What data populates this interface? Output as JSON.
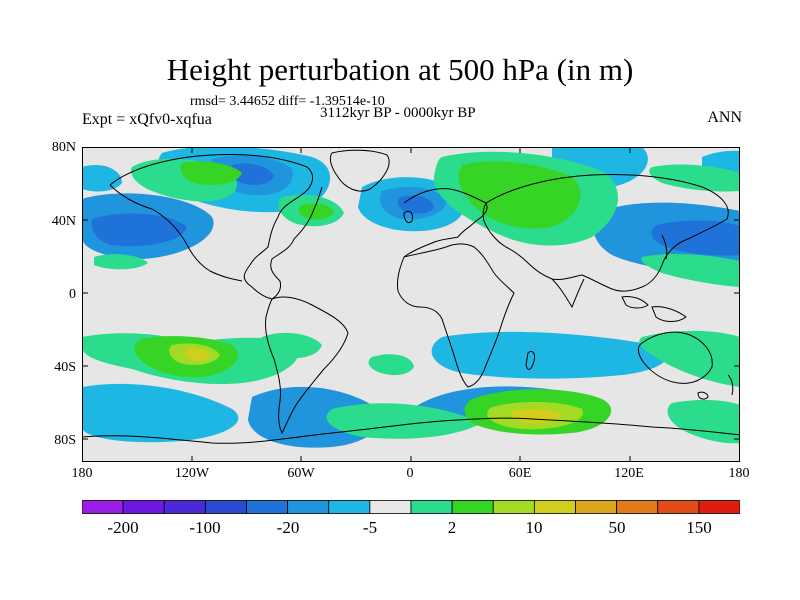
{
  "title": "Height perturbation at 500 hPa (in m)",
  "stats": "rmsd= 3.44652 diff= -1.39514e-10",
  "period": "3112kyr BP - 0000kyr BP",
  "experiment": "Expt = xQfv0-xqfua",
  "season": "ANN",
  "map": {
    "lat_ticks": [
      "80N",
      "40N",
      "0",
      "40S",
      "80S"
    ],
    "lon_ticks": [
      "180",
      "120W",
      "60W",
      "0",
      "60E",
      "120E",
      "180"
    ],
    "background_color": "#e6e6e6"
  },
  "colorbar": {
    "colors": [
      "#9a1de8",
      "#6e18e2",
      "#4a2ad8",
      "#2a4ad2",
      "#1e72d8",
      "#2094dc",
      "#1eb6e2",
      "#e8e8e8",
      "#2adc8c",
      "#36d424",
      "#a2da24",
      "#d2ce1e",
      "#dca61c",
      "#e07a1a",
      "#e24c16",
      "#e01c10"
    ],
    "labels": [
      "-200",
      "-100",
      "-20",
      "-5",
      "2",
      "10",
      "50",
      "150"
    ]
  },
  "chart_data": {
    "type": "heatmap",
    "title": "Height perturbation at 500 hPa (in m)",
    "variable": "500 hPa geopotential height difference",
    "units": "m",
    "color_levels": [
      "-200",
      "-100",
      "-20",
      "-5",
      "2",
      "10",
      "50",
      "150"
    ],
    "lon_range": [
      -180,
      180
    ],
    "lat_range": [
      -90,
      90
    ]
  }
}
